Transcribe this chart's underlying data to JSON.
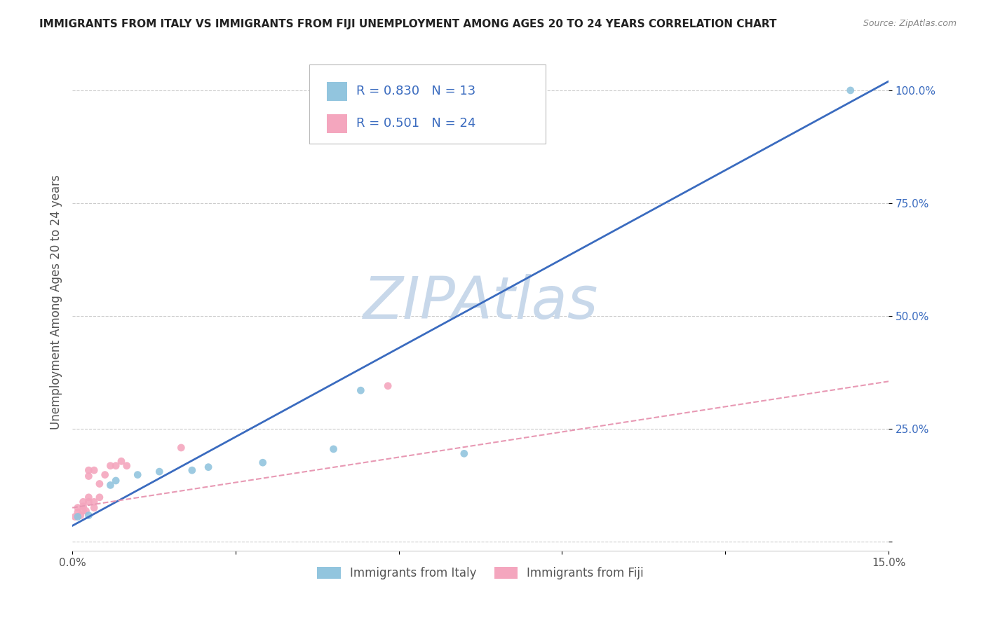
{
  "title": "IMMIGRANTS FROM ITALY VS IMMIGRANTS FROM FIJI UNEMPLOYMENT AMONG AGES 20 TO 24 YEARS CORRELATION CHART",
  "source_text": "Source: ZipAtlas.com",
  "ylabel": "Unemployment Among Ages 20 to 24 years",
  "xlim": [
    0.0,
    0.15
  ],
  "ylim": [
    -0.02,
    1.08
  ],
  "xticks": [
    0.0,
    0.03,
    0.06,
    0.09,
    0.12,
    0.15
  ],
  "xticklabels": [
    "0.0%",
    "",
    "",
    "",
    "",
    "15.0%"
  ],
  "yticks": [
    0.0,
    0.25,
    0.5,
    0.75,
    1.0
  ],
  "yticklabels": [
    "",
    "25.0%",
    "50.0%",
    "75.0%",
    "100.0%"
  ],
  "watermark": "ZIPAtlas",
  "blue_color": "#92c5de",
  "pink_color": "#f4a6be",
  "blue_scatter": [
    [
      0.001,
      0.055
    ],
    [
      0.003,
      0.058
    ],
    [
      0.007,
      0.125
    ],
    [
      0.008,
      0.135
    ],
    [
      0.012,
      0.148
    ],
    [
      0.016,
      0.155
    ],
    [
      0.022,
      0.158
    ],
    [
      0.025,
      0.165
    ],
    [
      0.035,
      0.175
    ],
    [
      0.048,
      0.205
    ],
    [
      0.053,
      0.335
    ],
    [
      0.072,
      0.195
    ],
    [
      0.143,
      1.0
    ]
  ],
  "pink_scatter": [
    [
      0.0005,
      0.055
    ],
    [
      0.001,
      0.065
    ],
    [
      0.001,
      0.075
    ],
    [
      0.0015,
      0.058
    ],
    [
      0.002,
      0.068
    ],
    [
      0.002,
      0.078
    ],
    [
      0.002,
      0.088
    ],
    [
      0.0025,
      0.068
    ],
    [
      0.003,
      0.088
    ],
    [
      0.003,
      0.098
    ],
    [
      0.003,
      0.145
    ],
    [
      0.003,
      0.158
    ],
    [
      0.004,
      0.075
    ],
    [
      0.004,
      0.088
    ],
    [
      0.004,
      0.158
    ],
    [
      0.005,
      0.098
    ],
    [
      0.005,
      0.128
    ],
    [
      0.006,
      0.148
    ],
    [
      0.007,
      0.168
    ],
    [
      0.008,
      0.168
    ],
    [
      0.009,
      0.178
    ],
    [
      0.01,
      0.168
    ],
    [
      0.02,
      0.208
    ],
    [
      0.058,
      0.345
    ]
  ],
  "blue_line_x": [
    0.0,
    0.15
  ],
  "blue_line_y": [
    0.035,
    1.02
  ],
  "pink_line_x": [
    0.0,
    0.15
  ],
  "pink_line_y": [
    0.075,
    0.355
  ],
  "legend_blue_label": "R = 0.830   N = 13",
  "legend_pink_label": "R = 0.501   N = 24",
  "bottom_legend_blue": "Immigrants from Italy",
  "bottom_legend_pink": "Immigrants from Fiji",
  "title_color": "#222222",
  "axis_color": "#555555",
  "grid_color": "#cccccc",
  "blue_text_color": "#3a6bbf",
  "watermark_color": "#c8d8ea",
  "title_fontsize": 11,
  "source_fontsize": 9,
  "tick_fontsize": 11,
  "ylabel_fontsize": 12,
  "scatter_size": 60,
  "blue_line_color": "#3a6bbf",
  "pink_line_color": "#e899b4"
}
